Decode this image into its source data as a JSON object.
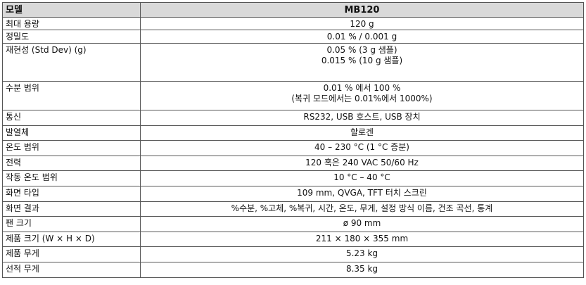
{
  "table": {
    "header": [
      "모델",
      "MB120"
    ],
    "rows": [
      [
        "최대 용량",
        [
          "120 g"
        ]
      ],
      [
        "정밀도",
        [
          "0.01 % / 0.001 g"
        ]
      ],
      [
        "재현성 (Std Dev) (g)",
        [
          "0.05 % (3 g  샘플)",
          "0.015 % (10 g 샘플)"
        ]
      ],
      [
        "수분 범위",
        [
          "0.01 % 에서 100 %",
          "(복귀 모드에서는 0.01%에서 1000%)"
        ]
      ],
      [
        "통신",
        [
          "RS232, USB 호스트, USB 장치"
        ]
      ],
      [
        "발열체",
        [
          "할로겐"
        ]
      ],
      [
        "온도 범위",
        [
          "40 – 230 °C (1 °C 증분)"
        ]
      ],
      [
        "전력",
        [
          "120 혹은 240 VAC 50/60 Hz"
        ]
      ],
      [
        "작동 온도 범위",
        [
          "10 °C – 40 °C"
        ]
      ],
      [
        "화면 타입",
        [
          "109 mm, QVGA, TFT 터치 스크린"
        ]
      ],
      [
        "화면 결과",
        [
          "%수분, %고체, %복귀, 시간, 온도, 무게, 설정 방식 이름, 건조 곡선, 통계"
        ]
      ],
      [
        "팬 크기",
        [
          "ø 90 mm"
        ]
      ],
      [
        "제품 크기 (W × H × D)",
        [
          "211 × 180 × 355 mm"
        ]
      ],
      [
        "제품 무게",
        [
          "5.23 kg"
        ]
      ],
      [
        "선적 무게",
        [
          "8.35 kg"
        ]
      ]
    ]
  }
}
